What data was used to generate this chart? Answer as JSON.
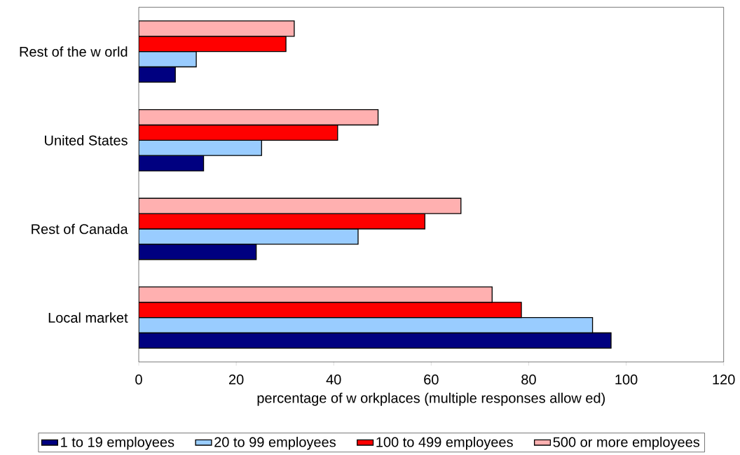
{
  "chart_data": {
    "type": "bar",
    "orientation": "horizontal",
    "xlabel": "percentage of w orkplaces (multiple responses allow ed)",
    "categories": [
      "Rest of the w orld",
      "United States",
      "Rest of Canada",
      "Local market"
    ],
    "series": [
      {
        "name": "1 to 19 employees",
        "color": "#000080",
        "values": [
          7.5,
          13.3,
          24.1,
          96.9
        ]
      },
      {
        "name": "20 to 99 employees",
        "color": "#99ccff",
        "values": [
          11.8,
          25.2,
          45.0,
          93.1
        ]
      },
      {
        "name": "100 to 499 employees",
        "color": "#ff0000",
        "values": [
          30.2,
          40.8,
          58.7,
          78.5
        ]
      },
      {
        "name": "500 or more employees",
        "color": "#ffb0b0",
        "values": [
          31.9,
          49.1,
          66.1,
          72.5
        ]
      }
    ],
    "xlim": [
      0,
      120
    ],
    "xticks": [
      0,
      20,
      40,
      60,
      80,
      100,
      120
    ],
    "grid": false,
    "legend": "bottom"
  }
}
